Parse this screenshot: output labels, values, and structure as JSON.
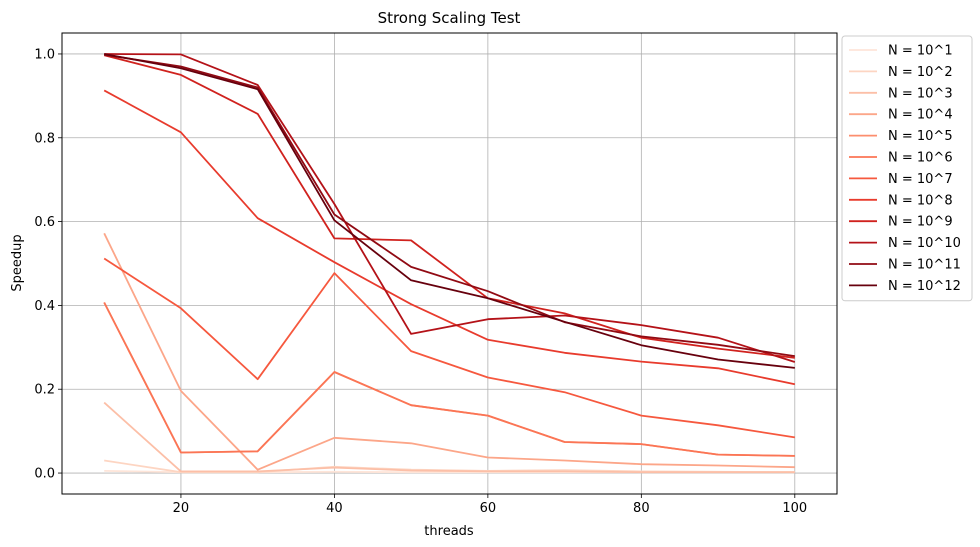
{
  "chart_data": {
    "type": "line",
    "title": "Strong Scaling Test",
    "xlabel": "threads",
    "ylabel": "Speedup",
    "xlim": [
      4.5,
      105.5
    ],
    "ylim": [
      -0.05,
      1.05
    ],
    "xticks": [
      20,
      40,
      60,
      80,
      100
    ],
    "yticks": [
      0.0,
      0.2,
      0.4,
      0.6,
      0.8,
      1.0
    ],
    "xtick_labels": [
      "20",
      "40",
      "60",
      "80",
      "100"
    ],
    "ytick_labels": [
      "0.0",
      "0.2",
      "0.4",
      "0.6",
      "0.8",
      "1.0"
    ],
    "grid": true,
    "legend_position": "outside-upper-right",
    "x": [
      10,
      20,
      30,
      40,
      50,
      60,
      70,
      80,
      90,
      100
    ],
    "series": [
      {
        "name": "N = 10^1",
        "color": "#fee5d9",
        "values": [
          0.005,
          0.002,
          0.002,
          0.003,
          0.002,
          0.002,
          0.002,
          0.002,
          0.002,
          0.002
        ]
      },
      {
        "name": "N = 10^2",
        "color": "#fdd5c2",
        "values": [
          0.03,
          0.002,
          0.002,
          0.015,
          0.008,
          0.005,
          0.007,
          0.004,
          0.003,
          0.002
        ]
      },
      {
        "name": "N = 10^3",
        "color": "#fcbfa7",
        "values": [
          0.168,
          0.004,
          0.004,
          0.013,
          0.006,
          0.004,
          0.004,
          0.002,
          0.002,
          0.002
        ]
      },
      {
        "name": "N = 10^4",
        "color": "#fca689",
        "values": [
          0.572,
          0.196,
          0.008,
          0.084,
          0.071,
          0.037,
          0.03,
          0.021,
          0.018,
          0.014
        ]
      },
      {
        "name": "N = 10^5",
        "color": "#fc8e6e",
        "values": [
          0.407,
          0.049,
          0.052,
          0.241,
          0.162,
          0.137,
          0.074,
          0.069,
          0.044,
          0.041
        ]
      },
      {
        "name": "N = 10^6",
        "color": "#fb7555",
        "values": [
          0.407,
          0.049,
          0.052,
          0.241,
          0.162,
          0.137,
          0.074,
          0.069,
          0.044,
          0.041
        ]
      },
      {
        "name": "N = 10^7",
        "color": "#f6583e",
        "values": [
          0.512,
          0.393,
          0.224,
          0.477,
          0.291,
          0.228,
          0.193,
          0.137,
          0.114,
          0.085
        ]
      },
      {
        "name": "N = 10^8",
        "color": "#e83b2d",
        "values": [
          0.913,
          0.813,
          0.608,
          0.503,
          0.403,
          0.318,
          0.287,
          0.266,
          0.25,
          0.212
        ]
      },
      {
        "name": "N = 10^9",
        "color": "#d0221e",
        "values": [
          0.997,
          0.95,
          0.857,
          0.56,
          0.555,
          0.417,
          0.381,
          0.323,
          0.297,
          0.275
        ]
      },
      {
        "name": "N = 10^10",
        "color": "#b41218",
        "values": [
          1.0,
          0.999,
          0.926,
          0.642,
          0.332,
          0.367,
          0.376,
          0.353,
          0.323,
          0.265
        ]
      },
      {
        "name": "N = 10^11",
        "color": "#910a13",
        "values": [
          0.998,
          0.97,
          0.92,
          0.617,
          0.492,
          0.434,
          0.36,
          0.326,
          0.306,
          0.279
        ]
      },
      {
        "name": "N = 10^12",
        "color": "#67000d",
        "values": [
          1.0,
          0.966,
          0.916,
          0.603,
          0.46,
          0.417,
          0.361,
          0.305,
          0.271,
          0.251
        ]
      }
    ]
  }
}
